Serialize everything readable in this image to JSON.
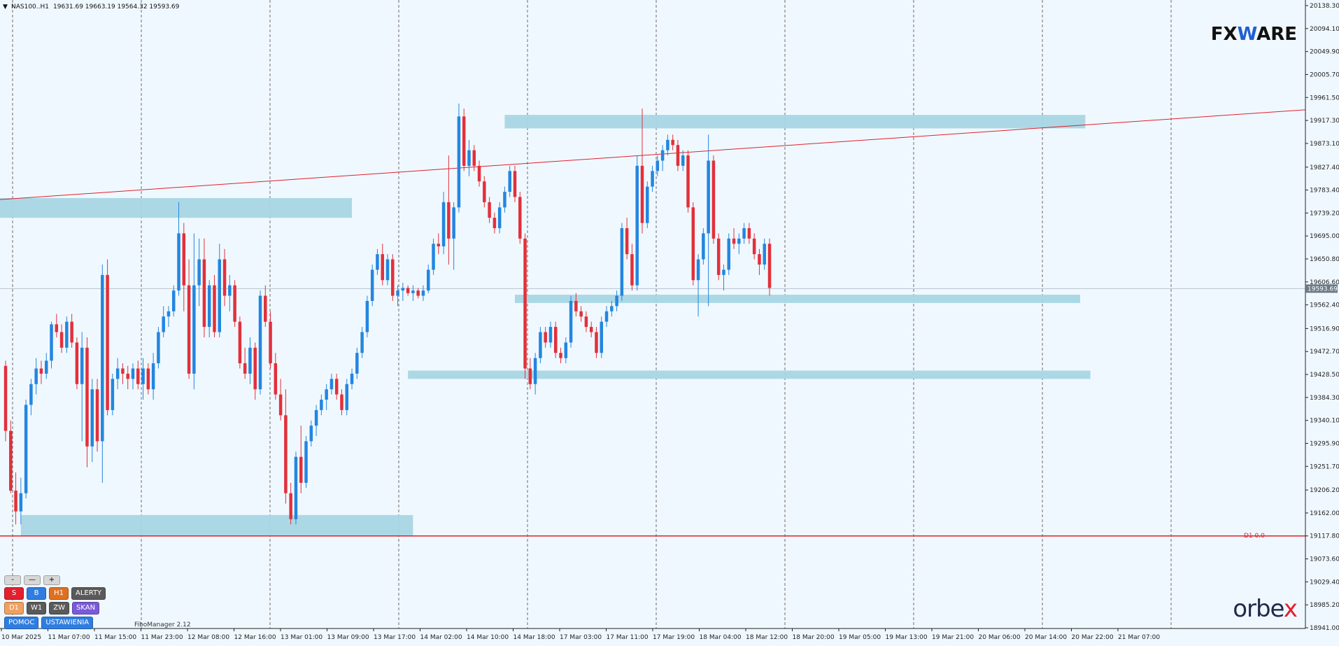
{
  "header": {
    "symbol": "NAS100..H1",
    "ohlc": "19631.69 19663.19 19564.32 19593.69"
  },
  "logos": {
    "fxware_a": "FX",
    "fxware_w": "W",
    "fxware_b": "ARE",
    "orbex_a": "orbe",
    "orbex_x": "x"
  },
  "fibo_label": "FiboManager 2.12",
  "d1_label": "D1 0.0",
  "price_tag": "19593.69",
  "panel": {
    "row1": [
      "-",
      "—",
      "+"
    ],
    "row2": [
      {
        "label": "S",
        "color": "#e2202e"
      },
      {
        "label": "B",
        "color": "#2f7de1"
      },
      {
        "label": "H1",
        "color": "#e07020"
      },
      {
        "label": "ALERTY",
        "color": "#5a5a5a"
      }
    ],
    "row3": [
      {
        "label": "D1",
        "color": "#f0a060"
      },
      {
        "label": "W1",
        "color": "#5a5a5a"
      },
      {
        "label": "ZW",
        "color": "#5a5a5a"
      },
      {
        "label": "SKAN",
        "color": "#7a5ad8"
      }
    ],
    "row4": [
      {
        "label": "POMOC",
        "color": "#2f7de1"
      },
      {
        "label": "USTAWIENIA",
        "color": "#2f7de1"
      }
    ]
  },
  "chart_data": {
    "type": "candlestick",
    "symbol": "NAS100",
    "timeframe": "H1",
    "y_range": [
      18941,
      20138.3
    ],
    "y_ticks": [
      20138.3,
      20094.1,
      20049.9,
      20005.7,
      19961.5,
      19917.3,
      19873.1,
      19827.4,
      19783.4,
      19739.2,
      19695.0,
      19650.8,
      19606.6,
      19562.4,
      19516.9,
      19472.7,
      19428.5,
      19384.3,
      19340.1,
      19295.9,
      19251.7,
      19206.2,
      19162.0,
      19117.8,
      19073.6,
      19029.4,
      18985.2,
      18941.0
    ],
    "y_tick_labels": [
      "20138.30",
      "20094.10",
      "20049.90",
      "20005.70",
      "19961.50",
      "19917.30",
      "19873.10",
      "19827.40",
      "19783.40",
      "19739.20",
      "19695.00",
      "19650.80",
      "19606.60",
      "19562.40",
      "19516.90",
      "19472.70",
      "19428.50",
      "19384.30",
      "19340.10",
      "19295.90",
      "19251.70",
      "19206.20",
      "19162.00",
      "19117.80",
      "19073.60",
      "19029.40",
      "18985.20",
      "18941.00"
    ],
    "x_labels": [
      "10 Mar 2025",
      "11 Mar 07:00",
      "11 Mar 15:00",
      "11 Mar 23:00",
      "12 Mar 08:00",
      "12 Mar 16:00",
      "13 Mar 01:00",
      "13 Mar 09:00",
      "13 Mar 17:00",
      "14 Mar 02:00",
      "14 Mar 10:00",
      "14 Mar 18:00",
      "17 Mar 03:00",
      "17 Mar 11:00",
      "17 Mar 19:00",
      "18 Mar 04:00",
      "18 Mar 12:00",
      "18 Mar 20:00",
      "19 Mar 05:00",
      "19 Mar 13:00",
      "19 Mar 21:00",
      "20 Mar 06:00",
      "20 Mar 14:00",
      "20 Mar 22:00",
      "21 Mar 07:00"
    ],
    "zones": [
      {
        "x0": 0,
        "x1": 68,
        "low": 19730,
        "high": 19768
      },
      {
        "x0": 3,
        "x1": 80,
        "low": 19117,
        "high": 19158
      },
      {
        "x0": 98,
        "x1": 212,
        "low": 19902,
        "high": 19928
      },
      {
        "x0": 100,
        "x1": 211,
        "low": 19566,
        "high": 19582
      },
      {
        "x0": 79,
        "x1": 213,
        "low": 19420,
        "high": 19436
      }
    ],
    "trendline": {
      "x0": 0,
      "y0": 19765,
      "x1": 248,
      "y1": 19933
    },
    "horizontal_line": 19117.8,
    "last_price": 19593.69,
    "candles": [
      [
        19445,
        19455,
        19300,
        19320
      ],
      [
        19320,
        19340,
        19200,
        19205
      ],
      [
        19205,
        19240,
        19140,
        19165
      ],
      [
        19165,
        19230,
        19140,
        19200
      ],
      [
        19200,
        19380,
        19190,
        19370
      ],
      [
        19370,
        19420,
        19350,
        19410
      ],
      [
        19410,
        19460,
        19390,
        19440
      ],
      [
        19440,
        19455,
        19410,
        19430
      ],
      [
        19430,
        19470,
        19420,
        19455
      ],
      [
        19455,
        19530,
        19440,
        19525
      ],
      [
        19525,
        19545,
        19500,
        19510
      ],
      [
        19510,
        19525,
        19470,
        19480
      ],
      [
        19480,
        19540,
        19470,
        19530
      ],
      [
        19530,
        19545,
        19480,
        19490
      ],
      [
        19490,
        19500,
        19400,
        19410
      ],
      [
        19410,
        19510,
        19300,
        19480
      ],
      [
        19480,
        19500,
        19250,
        19290
      ],
      [
        19290,
        19420,
        19260,
        19400
      ],
      [
        19400,
        19420,
        19280,
        19300
      ],
      [
        19300,
        19640,
        19220,
        19620
      ],
      [
        19620,
        19650,
        19350,
        19360
      ],
      [
        19360,
        19430,
        19350,
        19420
      ],
      [
        19420,
        19460,
        19400,
        19440
      ],
      [
        19440,
        19450,
        19410,
        19430
      ],
      [
        19430,
        19445,
        19400,
        19420
      ],
      [
        19420,
        19450,
        19400,
        19440
      ],
      [
        19440,
        19455,
        19400,
        19410
      ],
      [
        19410,
        19460,
        19380,
        19440
      ],
      [
        19440,
        19450,
        19390,
        19400
      ],
      [
        19400,
        19470,
        19380,
        19450
      ],
      [
        19450,
        19520,
        19440,
        19510
      ],
      [
        19510,
        19560,
        19500,
        19540
      ],
      [
        19540,
        19560,
        19520,
        19550
      ],
      [
        19550,
        19600,
        19540,
        19590
      ],
      [
        19590,
        19760,
        19580,
        19700
      ],
      [
        19700,
        19720,
        19550,
        19600
      ],
      [
        19600,
        19650,
        19420,
        19430
      ],
      [
        19430,
        19700,
        19400,
        19600
      ],
      [
        19600,
        19690,
        19560,
        19650
      ],
      [
        19650,
        19690,
        19500,
        19520
      ],
      [
        19520,
        19610,
        19500,
        19600
      ],
      [
        19600,
        19620,
        19500,
        19510
      ],
      [
        19510,
        19680,
        19500,
        19650
      ],
      [
        19650,
        19670,
        19560,
        19580
      ],
      [
        19580,
        19620,
        19550,
        19600
      ],
      [
        19600,
        19610,
        19520,
        19530
      ],
      [
        19530,
        19540,
        19440,
        19450
      ],
      [
        19450,
        19480,
        19420,
        19430
      ],
      [
        19430,
        19500,
        19410,
        19480
      ],
      [
        19480,
        19490,
        19380,
        19400
      ],
      [
        19400,
        19590,
        19390,
        19580
      ],
      [
        19580,
        19600,
        19520,
        19530
      ],
      [
        19530,
        19550,
        19440,
        19450
      ],
      [
        19450,
        19470,
        19380,
        19390
      ],
      [
        19390,
        19420,
        19340,
        19350
      ],
      [
        19350,
        19400,
        19180,
        19200
      ],
      [
        19200,
        19220,
        19140,
        19150
      ],
      [
        19150,
        19280,
        19140,
        19270
      ],
      [
        19270,
        19330,
        19200,
        19220
      ],
      [
        19220,
        19310,
        19210,
        19300
      ],
      [
        19300,
        19340,
        19290,
        19330
      ],
      [
        19330,
        19370,
        19310,
        19360
      ],
      [
        19360,
        19390,
        19350,
        19380
      ],
      [
        19380,
        19410,
        19360,
        19400
      ],
      [
        19400,
        19430,
        19390,
        19420
      ],
      [
        19420,
        19430,
        19380,
        19390
      ],
      [
        19390,
        19400,
        19350,
        19360
      ],
      [
        19360,
        19420,
        19350,
        19410
      ],
      [
        19410,
        19440,
        19400,
        19430
      ],
      [
        19430,
        19480,
        19420,
        19470
      ],
      [
        19470,
        19520,
        19460,
        19510
      ],
      [
        19510,
        19580,
        19500,
        19570
      ],
      [
        19570,
        19640,
        19560,
        19630
      ],
      [
        19630,
        19670,
        19620,
        19660
      ],
      [
        19660,
        19680,
        19600,
        19610
      ],
      [
        19610,
        19660,
        19600,
        19650
      ],
      [
        19650,
        19660,
        19570,
        19580
      ],
      [
        19580,
        19600,
        19560,
        19590
      ],
      [
        19590,
        19605,
        19570,
        19595
      ],
      [
        19595,
        19600,
        19580,
        19585
      ],
      [
        19585,
        19600,
        19570,
        19590
      ],
      [
        19590,
        19595,
        19575,
        19580
      ],
      [
        19580,
        19600,
        19570,
        19590
      ],
      [
        19590,
        19640,
        19585,
        19630
      ],
      [
        19630,
        19690,
        19620,
        19680
      ],
      [
        19680,
        19700,
        19660,
        19675
      ],
      [
        19675,
        19780,
        19660,
        19760
      ],
      [
        19760,
        19850,
        19640,
        19690
      ],
      [
        19690,
        19760,
        19630,
        19750
      ],
      [
        19750,
        19950,
        19740,
        19925
      ],
      [
        19925,
        19940,
        19820,
        19830
      ],
      [
        19830,
        19880,
        19810,
        19860
      ],
      [
        19860,
        19870,
        19820,
        19830
      ],
      [
        19830,
        19840,
        19790,
        19800
      ],
      [
        19800,
        19810,
        19750,
        19760
      ],
      [
        19760,
        19770,
        19720,
        19730
      ],
      [
        19730,
        19740,
        19700,
        19710
      ],
      [
        19710,
        19760,
        19700,
        19750
      ],
      [
        19750,
        19790,
        19740,
        19780
      ],
      [
        19780,
        19830,
        19770,
        19820
      ],
      [
        19820,
        19830,
        19760,
        19770
      ],
      [
        19770,
        19780,
        19680,
        19690
      ],
      [
        19690,
        19700,
        19420,
        19440
      ],
      [
        19440,
        19460,
        19400,
        19410
      ],
      [
        19410,
        19470,
        19390,
        19460
      ],
      [
        19460,
        19520,
        19450,
        19510
      ],
      [
        19510,
        19520,
        19480,
        19490
      ],
      [
        19490,
        19530,
        19480,
        19520
      ],
      [
        19520,
        19530,
        19460,
        19470
      ],
      [
        19470,
        19480,
        19450,
        19460
      ],
      [
        19460,
        19500,
        19450,
        19490
      ],
      [
        19490,
        19580,
        19480,
        19570
      ],
      [
        19570,
        19585,
        19540,
        19550
      ],
      [
        19550,
        19560,
        19530,
        19540
      ],
      [
        19540,
        19550,
        19510,
        19520
      ],
      [
        19520,
        19530,
        19500,
        19510
      ],
      [
        19510,
        19520,
        19460,
        19470
      ],
      [
        19470,
        19540,
        19460,
        19530
      ],
      [
        19530,
        19560,
        19520,
        19550
      ],
      [
        19550,
        19570,
        19540,
        19560
      ],
      [
        19560,
        19590,
        19550,
        19580
      ],
      [
        19580,
        19720,
        19570,
        19710
      ],
      [
        19710,
        19730,
        19650,
        19660
      ],
      [
        19660,
        19680,
        19590,
        19600
      ],
      [
        19600,
        19850,
        19590,
        19830
      ],
      [
        19830,
        19940,
        19700,
        19720
      ],
      [
        19720,
        19800,
        19710,
        19790
      ],
      [
        19790,
        19830,
        19780,
        19820
      ],
      [
        19820,
        19850,
        19810,
        19840
      ],
      [
        19840,
        19870,
        19820,
        19860
      ],
      [
        19860,
        19890,
        19850,
        19880
      ],
      [
        19880,
        19890,
        19860,
        19870
      ],
      [
        19870,
        19880,
        19820,
        19830
      ],
      [
        19830,
        19860,
        19820,
        19850
      ],
      [
        19850,
        19860,
        19740,
        19750
      ],
      [
        19750,
        19760,
        19600,
        19610
      ],
      [
        19610,
        19660,
        19540,
        19650
      ],
      [
        19650,
        19710,
        19640,
        19700
      ],
      [
        19700,
        19890,
        19560,
        19840
      ],
      [
        19840,
        19850,
        19680,
        19690
      ],
      [
        19690,
        19700,
        19610,
        19620
      ],
      [
        19620,
        19640,
        19590,
        19630
      ],
      [
        19630,
        19700,
        19620,
        19690
      ],
      [
        19690,
        19710,
        19670,
        19680
      ],
      [
        19680,
        19700,
        19660,
        19690
      ],
      [
        19690,
        19720,
        19680,
        19710
      ],
      [
        19710,
        19720,
        19680,
        19690
      ],
      [
        19690,
        19700,
        19650,
        19660
      ],
      [
        19660,
        19670,
        19620,
        19640
      ],
      [
        19640,
        19690,
        19630,
        19680
      ],
      [
        19680,
        19690,
        19580,
        19595
      ]
    ]
  }
}
